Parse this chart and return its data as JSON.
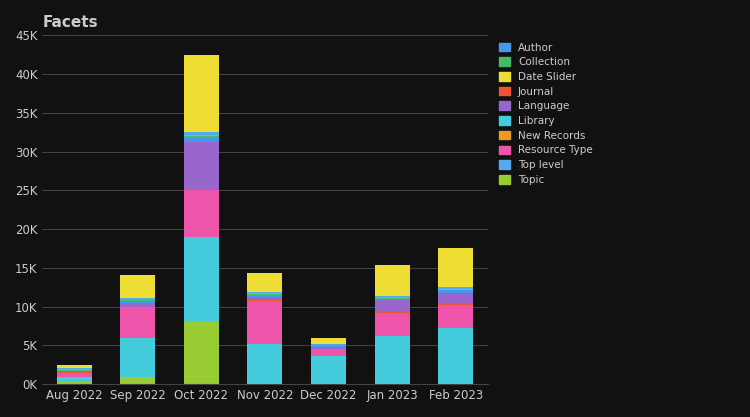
{
  "months": [
    "Aug 2022",
    "Sep 2022",
    "Oct 2022",
    "Nov 2022",
    "Dec 2022",
    "Jan 2023",
    "Feb 2023"
  ],
  "categories": [
    "Topic",
    "Library",
    "Resource Type",
    "Journal",
    "Language",
    "Author",
    "Collection",
    "New Records",
    "Top level",
    "Date Slider"
  ],
  "colors": {
    "Topic": "#99cc33",
    "Library": "#44ccdd",
    "Resource Type": "#ee55aa",
    "Journal": "#ee5533",
    "Language": "#9966cc",
    "Author": "#4499ee",
    "Collection": "#44bb66",
    "New Records": "#ee9922",
    "Top level": "#55aaee",
    "Date Slider": "#eedd33"
  },
  "data": {
    "Topic": [
      300,
      900,
      8000,
      200,
      100,
      200,
      200
    ],
    "Library": [
      600,
      5000,
      11000,
      5000,
      3500,
      6000,
      7000
    ],
    "Resource Type": [
      600,
      4000,
      6000,
      5500,
      900,
      3000,
      3000
    ],
    "Journal": [
      50,
      100,
      200,
      100,
      50,
      100,
      100
    ],
    "Language": [
      100,
      500,
      6000,
      500,
      300,
      1500,
      1500
    ],
    "Author": [
      100,
      200,
      500,
      200,
      100,
      200,
      300
    ],
    "Collection": [
      100,
      100,
      300,
      100,
      50,
      100,
      100
    ],
    "New Records": [
      100,
      100,
      200,
      100,
      50,
      100,
      100
    ],
    "Top level": [
      100,
      200,
      300,
      200,
      100,
      200,
      200
    ],
    "Date Slider": [
      450,
      3000,
      10000,
      2500,
      800,
      4000,
      5000
    ]
  },
  "title": "Facets",
  "ylim": [
    0,
    45000
  ],
  "yticks": [
    0,
    5000,
    10000,
    15000,
    20000,
    25000,
    30000,
    35000,
    40000,
    45000
  ],
  "ytick_labels": [
    "0K",
    "5K",
    "10K",
    "15K",
    "20K",
    "25K",
    "30K",
    "35K",
    "40K",
    "45K"
  ],
  "background_color": "#111111",
  "text_color": "#cccccc",
  "grid_color": "#444444",
  "legend_order": [
    "Author",
    "Collection",
    "Date Slider",
    "Journal",
    "Language",
    "Library",
    "New Records",
    "Resource Type",
    "Top level",
    "Topic"
  ]
}
